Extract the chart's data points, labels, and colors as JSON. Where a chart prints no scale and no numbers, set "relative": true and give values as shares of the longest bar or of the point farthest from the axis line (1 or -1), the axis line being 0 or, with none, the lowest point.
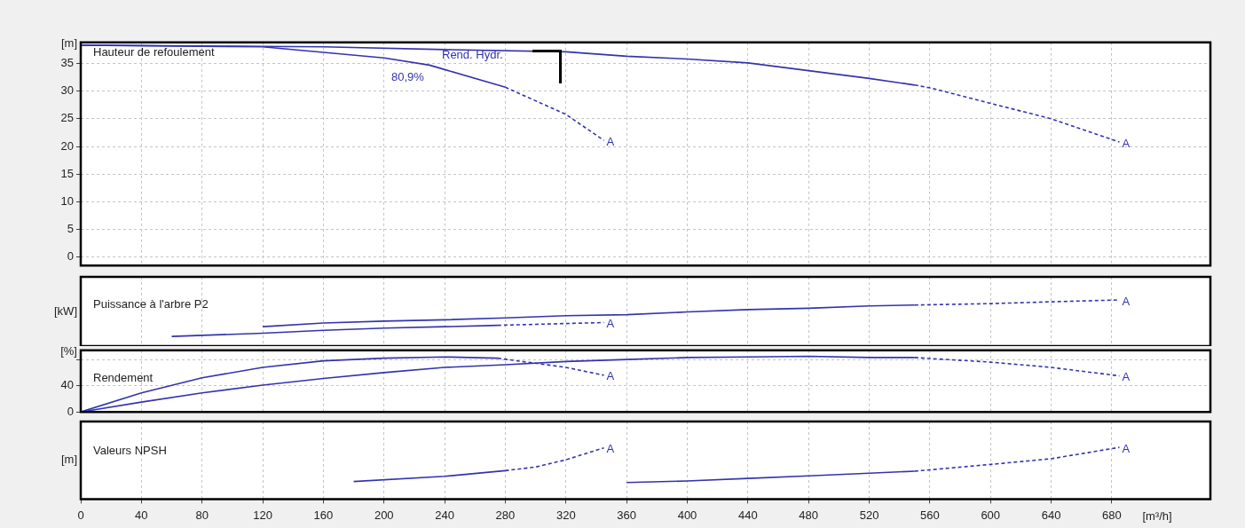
{
  "chart_data": [
    {
      "type": "line",
      "title": "Hauteur de refoulement",
      "ylabel": "[m]",
      "xlim": [
        0,
        745
      ],
      "ylim": [
        -1.5,
        38.8
      ],
      "yticks": [
        0,
        5,
        10,
        15,
        20,
        25,
        30,
        35
      ],
      "xticks": [
        0,
        40,
        80,
        120,
        160,
        200,
        240,
        280,
        320,
        360,
        400,
        440,
        480,
        520,
        560,
        600,
        640,
        680
      ],
      "grid": true,
      "tick_labels": "y",
      "series": [
        {
          "color": "#3333b0",
          "line_style": "solid",
          "x": [
            0,
            120,
            160,
            200,
            230,
            240,
            280
          ],
          "values": [
            38.3,
            38.0,
            37.0,
            36.0,
            34.7,
            33.9,
            30.7
          ]
        },
        {
          "color": "#3333b0",
          "line_style": "dashed",
          "x": [
            280,
            320,
            345
          ],
          "values": [
            30.7,
            25.8,
            21.1
          ]
        },
        {
          "color": "#3333b0",
          "line_style": "solid",
          "x": [
            0,
            160,
            240,
            320,
            360,
            400,
            440,
            480,
            520,
            550
          ],
          "values": [
            38.3,
            38.0,
            37.5,
            37.1,
            36.3,
            35.8,
            35.1,
            33.7,
            32.3,
            31.1
          ]
        },
        {
          "color": "#3333b0",
          "line_style": "dashed",
          "x": [
            550,
            560,
            600,
            640,
            685
          ],
          "values": [
            31.1,
            30.6,
            27.8,
            25.0,
            20.8
          ]
        }
      ],
      "annotations": [
        "Rend. Hydr.",
        "80,9%",
        "A",
        "A"
      ]
    },
    {
      "type": "line",
      "title": "Puissance à l'arbre P2",
      "ylabel": "[kW]",
      "xlim": [
        0,
        745
      ],
      "xticks": [
        0,
        40,
        80,
        120,
        160,
        200,
        240,
        280,
        320,
        360,
        400,
        440,
        480,
        520,
        560,
        600,
        640,
        680
      ],
      "relative": true,
      "grid": "x",
      "tick_labels": false,
      "series": [
        {
          "color": "#3333b0",
          "line_style": "solid",
          "x": [
            60,
            120,
            160,
            200,
            240,
            275
          ],
          "values": [
            0.21,
            0.28,
            0.34,
            0.39,
            0.42,
            0.45
          ]
        },
        {
          "color": "#3333b0",
          "line_style": "dashed",
          "x": [
            275,
            345
          ],
          "values": [
            0.45,
            0.51
          ]
        },
        {
          "color": "#3333b0",
          "line_style": "solid",
          "x": [
            120,
            160,
            200,
            240,
            280,
            320,
            360,
            400,
            440,
            480,
            520,
            550
          ],
          "values": [
            0.42,
            0.5,
            0.54,
            0.57,
            0.61,
            0.66,
            0.68,
            0.74,
            0.79,
            0.82,
            0.87,
            0.89
          ]
        },
        {
          "color": "#3333b0",
          "line_style": "dashed",
          "x": [
            550,
            600,
            640,
            685
          ],
          "values": [
            0.89,
            0.92,
            0.96,
            1.0
          ]
        }
      ],
      "annotations": [
        "A",
        "A"
      ]
    },
    {
      "type": "line",
      "title": "Rendement",
      "ylabel": "[%]",
      "xlim": [
        0,
        745
      ],
      "ylim": [
        0,
        94
      ],
      "yticks": [
        0,
        40,
        {
          "value": 80,
          "label": null
        }
      ],
      "xticks": [
        0,
        40,
        80,
        120,
        160,
        200,
        240,
        280,
        320,
        360,
        400,
        440,
        480,
        520,
        560,
        600,
        640,
        680
      ],
      "grid": true,
      "tick_labels": "y",
      "series": [
        {
          "color": "#3333b0",
          "line_style": "solid",
          "x": [
            0,
            40,
            80,
            120,
            160,
            200,
            240,
            275
          ],
          "values": [
            0,
            29,
            52,
            68,
            78,
            82,
            84,
            82
          ]
        },
        {
          "color": "#3333b0",
          "line_style": "dashed",
          "x": [
            275,
            320,
            345
          ],
          "values": [
            82,
            68,
            56
          ]
        },
        {
          "color": "#3333b0",
          "line_style": "solid",
          "x": [
            0,
            40,
            80,
            120,
            160,
            200,
            240,
            280,
            320,
            360,
            400,
            440,
            480,
            520,
            550
          ],
          "values": [
            0,
            15,
            29,
            41,
            51,
            60,
            68,
            72,
            77,
            80,
            83,
            84,
            85,
            83,
            83
          ]
        },
        {
          "color": "#3333b0",
          "line_style": "dashed",
          "x": [
            550,
            600,
            640,
            685
          ],
          "values": [
            83,
            76,
            68,
            55
          ]
        }
      ],
      "annotations": [
        "A",
        "A"
      ]
    },
    {
      "type": "line",
      "title": "Valeurs NPSH",
      "ylabel": "[m]",
      "xlabel": "[m³/h]",
      "xlim": [
        0,
        745
      ],
      "xticks": [
        0,
        40,
        80,
        120,
        160,
        200,
        240,
        280,
        320,
        360,
        400,
        440,
        480,
        520,
        560,
        600,
        640,
        680
      ],
      "relative": true,
      "grid": "x",
      "tick_labels": "x",
      "series": [
        {
          "color": "#3333b0",
          "line_style": "solid",
          "x": [
            180,
            240,
            280
          ],
          "values": [
            0.34,
            0.44,
            0.55
          ]
        },
        {
          "color": "#3333b0",
          "line_style": "dashed",
          "x": [
            280,
            300,
            320,
            345
          ],
          "values": [
            0.55,
            0.62,
            0.76,
            0.99
          ]
        },
        {
          "color": "#3333b0",
          "line_style": "solid",
          "x": [
            360,
            400,
            440,
            480,
            520,
            550
          ],
          "values": [
            0.32,
            0.35,
            0.4,
            0.45,
            0.5,
            0.54
          ]
        },
        {
          "color": "#3333b0",
          "line_style": "dashed",
          "x": [
            550,
            600,
            640,
            685
          ],
          "values": [
            0.54,
            0.67,
            0.78,
            1.0
          ]
        }
      ],
      "annotations": [
        "A",
        "A"
      ]
    }
  ]
}
